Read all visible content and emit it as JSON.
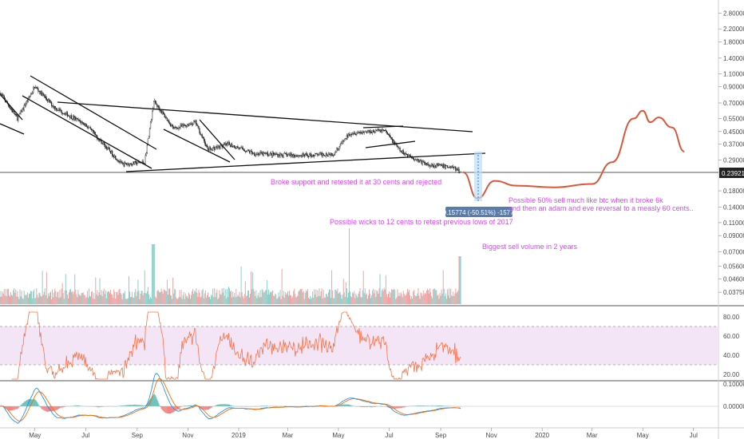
{
  "chart_data": {
    "type": "candlestick",
    "symbol_hint": "XRP/USD-like log price chart",
    "price_axis": {
      "scale": "log",
      "ticks": [
        "2.80000",
        "2.20000",
        "1.80000",
        "1.40000",
        "1.10000",
        "0.90000",
        "0.70000",
        "0.55000",
        "0.45000",
        "0.37000",
        "0.29000",
        "0.18000",
        "0.14000",
        "0.11000",
        "0.09000",
        "0.07000",
        "0.05600",
        "0.04600",
        "0.03750"
      ],
      "current_price": "0.23921"
    },
    "time_axis": {
      "labels": [
        "May",
        "Jul",
        "Sep",
        "Nov",
        "2019",
        "Mar",
        "May",
        "Jul",
        "Sep",
        "Nov",
        "2020",
        "Mar",
        "May",
        "Jul"
      ]
    },
    "price_keypoints": [
      {
        "date": "2018-03-20",
        "price": 0.82
      },
      {
        "date": "2018-04-10",
        "price": 0.55
      },
      {
        "date": "2018-05-01",
        "price": 0.9
      },
      {
        "date": "2018-05-25",
        "price": 0.65
      },
      {
        "date": "2018-07-01",
        "price": 0.5
      },
      {
        "date": "2018-08-14",
        "price": 0.27
      },
      {
        "date": "2018-09-10",
        "price": 0.28
      },
      {
        "date": "2018-09-21",
        "price": 0.72
      },
      {
        "date": "2018-10-15",
        "price": 0.47
      },
      {
        "date": "2018-11-10",
        "price": 0.52
      },
      {
        "date": "2018-11-25",
        "price": 0.34
      },
      {
        "date": "2018-12-20",
        "price": 0.37
      },
      {
        "date": "2019-01-20",
        "price": 0.32
      },
      {
        "date": "2019-03-20",
        "price": 0.31
      },
      {
        "date": "2019-04-25",
        "price": 0.32
      },
      {
        "date": "2019-05-15",
        "price": 0.44
      },
      {
        "date": "2019-06-25",
        "price": 0.46
      },
      {
        "date": "2019-07-15",
        "price": 0.33
      },
      {
        "date": "2019-08-15",
        "price": 0.27
      },
      {
        "date": "2019-09-15",
        "price": 0.26
      },
      {
        "date": "2019-09-25",
        "price": 0.24
      }
    ],
    "projection": [
      {
        "date": "2019-09-28",
        "price": 0.24
      },
      {
        "date": "2019-10-15",
        "price": 0.16
      },
      {
        "date": "2019-11-05",
        "price": 0.21
      },
      {
        "date": "2019-12-01",
        "price": 0.195
      },
      {
        "date": "2020-01-15",
        "price": 0.19
      },
      {
        "date": "2020-03-01",
        "price": 0.2
      },
      {
        "date": "2020-03-25",
        "price": 0.28
      },
      {
        "date": "2020-04-20",
        "price": 0.55
      },
      {
        "date": "2020-05-01",
        "price": 0.62
      },
      {
        "date": "2020-05-10",
        "price": 0.52
      },
      {
        "date": "2020-05-20",
        "price": 0.56
      },
      {
        "date": "2020-06-05",
        "price": 0.48
      },
      {
        "date": "2020-06-20",
        "price": 0.33
      }
    ],
    "measure_tool": {
      "label": "-0.15774 (-50.51%) -15774"
    },
    "annotations": [
      "Broke support and retested it at 30 cents and rejected",
      "Possible 50% sell much like btc when it broke 6k",
      "and then an adam and eve reversal to a measly 60 cents..",
      "Possible wicks to 12 cents to retest previous lows of 2017",
      "Biggest sell volume in 2 years"
    ],
    "rsi_axis": {
      "ticks": [
        "80.00",
        "60.00",
        "40.00",
        "20.00"
      ]
    },
    "macd_axis": {
      "ticks": [
        "0.10000",
        "0.00000"
      ]
    },
    "colors": {
      "up": "#26a69a",
      "down": "#ef5350",
      "projection": "#d9573b",
      "annotation": "#e040fb",
      "rsi": "#ff7043",
      "rsi_band": "#f3e5f5",
      "macd": "#2196f3",
      "signal": "#ff6d00",
      "tag_bg": "#5b7ba8"
    }
  }
}
